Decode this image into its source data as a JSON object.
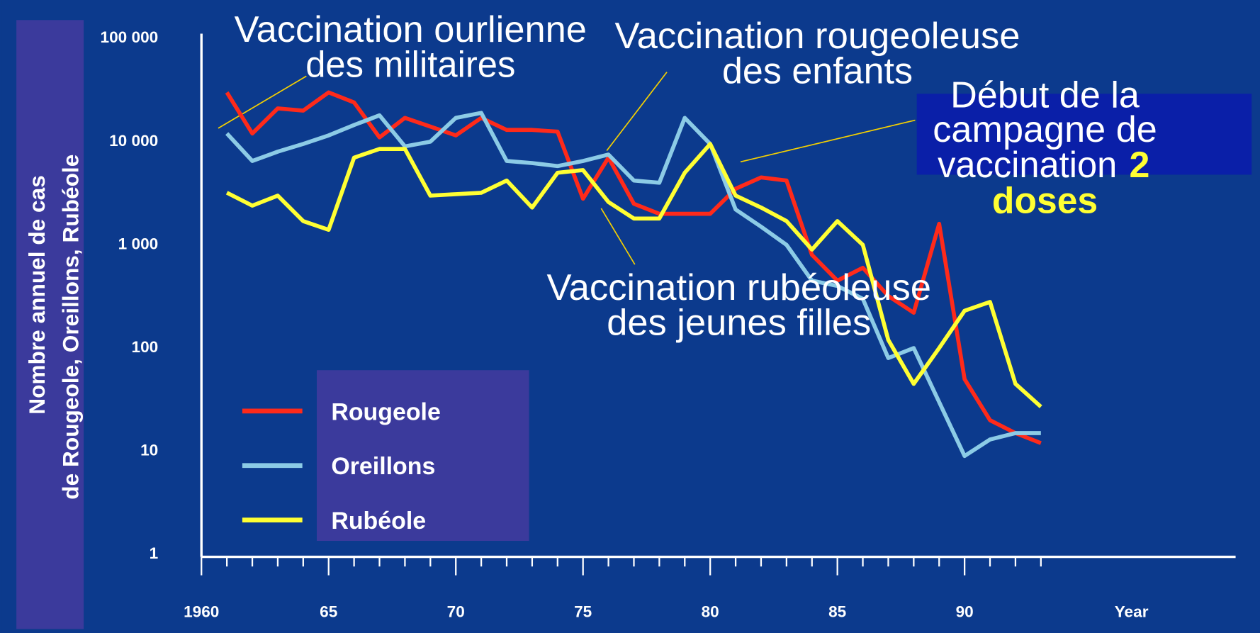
{
  "chart_data": {
    "type": "line",
    "ylabel": [
      "Nombre annuel de cas",
      "de Rougeole, Oreillons, Rubéole"
    ],
    "xlabel": "Year",
    "log_y": true,
    "xlim": [
      1960,
      2001
    ],
    "ylim": [
      1,
      100000
    ],
    "xticks": [
      1960,
      {
        "value": 1965,
        "label": "65"
      },
      {
        "value": 1970,
        "label": "70"
      },
      {
        "value": 1975,
        "label": "75"
      },
      {
        "value": 1980,
        "label": "80"
      },
      {
        "value": 1985,
        "label": "85"
      },
      {
        "value": 1990,
        "label": "90"
      }
    ],
    "xminor": [
      1961,
      1962,
      1963,
      1964,
      1966,
      1967,
      1968,
      1969,
      1971,
      1972,
      1973,
      1974,
      1976,
      1977,
      1978,
      1979,
      1981,
      1982,
      1983,
      1984,
      1986,
      1987,
      1988,
      1989,
      1991,
      1992,
      1993
    ],
    "yticks": [
      {
        "value": 100000,
        "label": "100 000"
      },
      {
        "value": 10000,
        "label": "10 000"
      },
      {
        "value": 1000,
        "label": "1 000"
      },
      100,
      10,
      1
    ],
    "x": [
      1961,
      1962,
      1963,
      1964,
      1965,
      1966,
      1967,
      1968,
      1969,
      1970,
      1971,
      1972,
      1973,
      1974,
      1975,
      1976,
      1977,
      1978,
      1979,
      1980,
      1981,
      1982,
      1983,
      1984,
      1985,
      1986,
      1987,
      1988,
      1989,
      1990,
      1991,
      1992,
      1993
    ],
    "series": [
      {
        "name": "Rougeole",
        "color": "#ff2a1a",
        "values": [
          30000,
          12000,
          21000,
          20000,
          30000,
          24000,
          11000,
          17000,
          14000,
          11500,
          17000,
          13000,
          13000,
          12500,
          2800,
          7000,
          2500,
          2000,
          2000,
          2000,
          3500,
          4500,
          4200,
          800,
          450,
          600,
          320,
          220,
          1600,
          50,
          20,
          15,
          12
        ]
      },
      {
        "name": "Oreillons",
        "color": "#8ccbe6",
        "values": [
          12000,
          6500,
          8000,
          9500,
          11500,
          14500,
          18000,
          9000,
          10000,
          17000,
          19000,
          6500,
          6200,
          5800,
          6500,
          7500,
          4200,
          4000,
          17000,
          9500,
          2200,
          1500,
          1000,
          450,
          400,
          300,
          80,
          100,
          30,
          9,
          13,
          15,
          15
        ]
      },
      {
        "name": "Rubéole",
        "color": "#ffff33",
        "values": [
          3200,
          2400,
          3000,
          1700,
          1400,
          7000,
          8500,
          8500,
          3000,
          3100,
          3200,
          4200,
          2300,
          5000,
          5300,
          2600,
          1800,
          1800,
          5000,
          9500,
          3000,
          2300,
          1700,
          900,
          1700,
          1000,
          120,
          45,
          100,
          230,
          280,
          45,
          27
        ]
      }
    ],
    "annotations": [
      {
        "lines": [
          "Vaccination ourlienne",
          "des militaires"
        ]
      },
      {
        "lines": [
          "Vaccination rougeoleuse",
          "des enfants"
        ]
      },
      {
        "lines": [
          "Vaccination rubéoleuse",
          "des jeunes filles"
        ]
      },
      {
        "lines": [
          "Début de la",
          "campagne de",
          "vaccination"
        ],
        "highlight": [
          "2",
          "doses"
        ]
      }
    ]
  }
}
